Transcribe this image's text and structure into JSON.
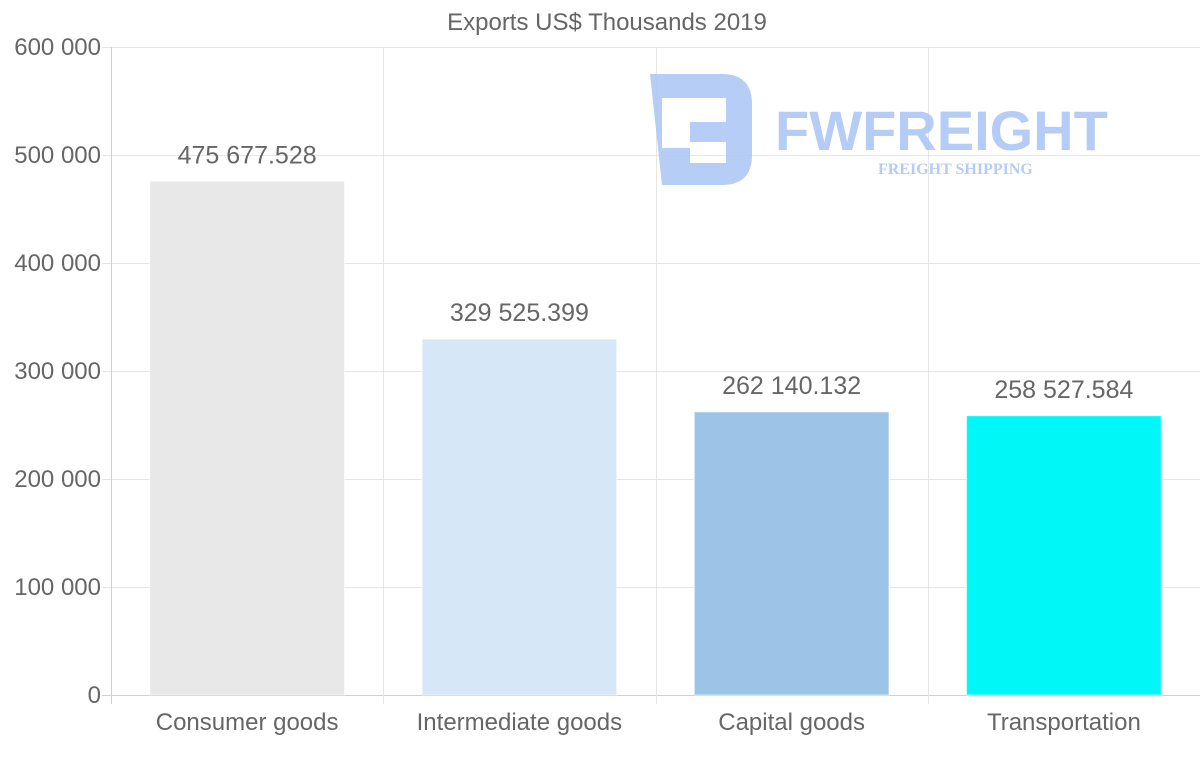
{
  "chart_data": {
    "type": "bar",
    "title": "Exports US$ Thousands 2019",
    "categories": [
      "Consumer goods",
      "Intermediate goods",
      "Capital goods",
      "Transportation"
    ],
    "values": [
      475677.528,
      329525.399,
      262140.132,
      258527.584
    ],
    "value_labels": [
      "475 677.528",
      "329 525.399",
      "262 140.132",
      "258 527.584"
    ],
    "bar_colors": [
      "#e8e8e8",
      "#d6e8f8",
      "#9bc4e6",
      "#00f7f7"
    ],
    "ylim": [
      0,
      600000
    ],
    "yticks": [
      0,
      100000,
      200000,
      300000,
      400000,
      500000,
      600000
    ],
    "ytick_labels": [
      "0",
      "100 000",
      "200 000",
      "300 000",
      "400 000",
      "500 000",
      "600 000"
    ],
    "xlabel": "",
    "ylabel": "",
    "grid": true,
    "legend": "none"
  },
  "watermark": {
    "brand": "FWFREIGHT",
    "tagline": "FREIGHT SHIPPING",
    "color": "#a9c4f5"
  }
}
